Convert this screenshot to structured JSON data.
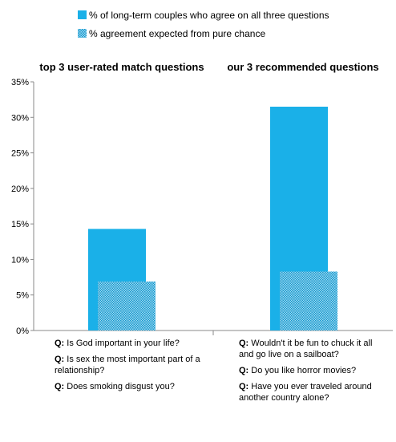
{
  "chart_data": {
    "type": "bar",
    "categories": [
      "top 3 user-rated match questions",
      "our 3 recommended questions"
    ],
    "series": [
      {
        "name": "% of long-term couples who agree on all three questions",
        "values": [
          14.3,
          31.5
        ],
        "color": "#1ab0e8",
        "pattern": "solid"
      },
      {
        "name": "% agreement expected from pure chance",
        "values": [
          6.9,
          8.3
        ],
        "color": "#2aa7d8",
        "pattern": "dotted"
      }
    ],
    "ylim": [
      0,
      35
    ],
    "yticks": [
      0,
      5,
      10,
      15,
      20,
      25,
      30,
      35
    ],
    "ytick_labels": [
      "0%",
      "5%",
      "10%",
      "15%",
      "20%",
      "25%",
      "30%",
      "35%"
    ],
    "grid": false,
    "legend": "top"
  },
  "questions": {
    "prefix": "Q:",
    "group1": [
      "Is God important in your life?",
      "Is sex the most important part of a relationship?",
      "Does smoking disgust you?"
    ],
    "group2": [
      "Wouldn't it be fun to chuck it all and go live on a sailboat?",
      "Do you like horror movies?",
      "Have you ever traveled around another country alone?"
    ]
  }
}
